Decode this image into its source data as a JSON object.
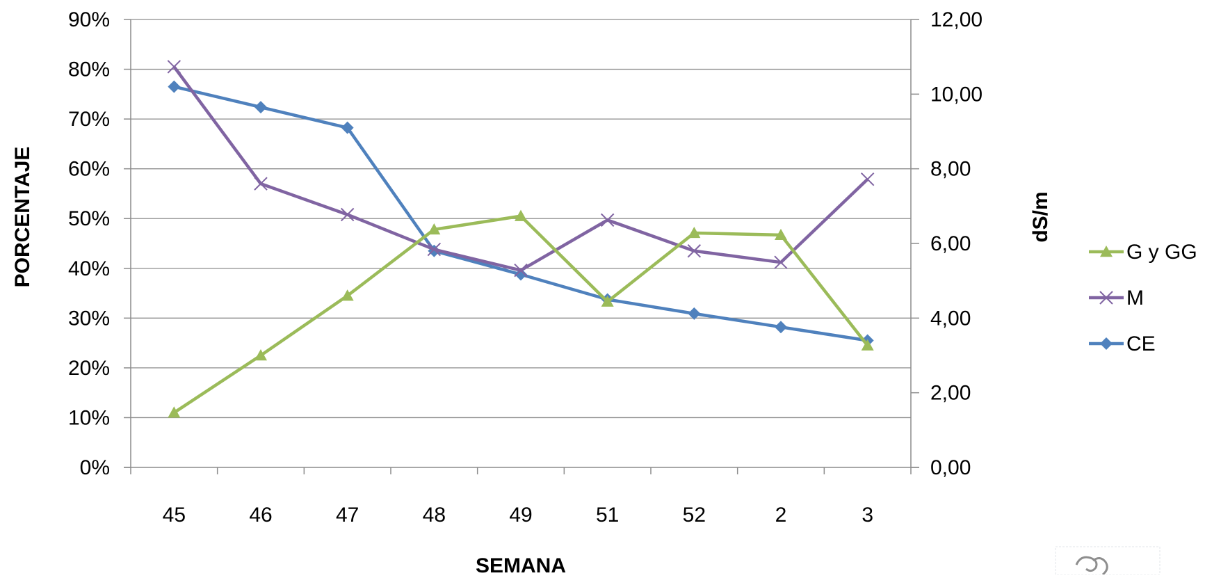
{
  "chart_data": {
    "type": "line",
    "title": "",
    "xlabel": "SEMANA",
    "ylabel": "PORCENTAJE",
    "y2label": "dS/m",
    "categories": [
      "45",
      "46",
      "47",
      "48",
      "49",
      "51",
      "52",
      "2",
      "3"
    ],
    "y_ticks": [
      "0%",
      "10%",
      "20%",
      "30%",
      "40%",
      "50%",
      "60%",
      "70%",
      "80%",
      "90%"
    ],
    "y_range": [
      0,
      90
    ],
    "y2_ticks": [
      "0,00",
      "2,00",
      "4,00",
      "6,00",
      "8,00",
      "10,00",
      "12,00"
    ],
    "y2_range": [
      0,
      12
    ],
    "grid": true,
    "legend_position": "right",
    "series": [
      {
        "name": "G y GG",
        "axis": "left",
        "unit": "%",
        "color": "#9BBB59",
        "marker": "triangle",
        "values": [
          11,
          22.5,
          34.5,
          47.8,
          50.5,
          33.3,
          47.1,
          46.7,
          24.5
        ]
      },
      {
        "name": "M",
        "axis": "left",
        "unit": "%",
        "color": "#8064A2",
        "marker": "x",
        "values": [
          80.5,
          57,
          50.8,
          43.8,
          39.6,
          49.7,
          43.5,
          41.2,
          57.9
        ]
      },
      {
        "name": "CE",
        "axis": "right",
        "unit": "dS/m",
        "color": "#4F81BD",
        "marker": "diamond",
        "values": [
          10.2,
          9.65,
          9.1,
          5.8,
          5.17,
          4.5,
          4.12,
          3.76,
          3.4
        ]
      }
    ]
  }
}
